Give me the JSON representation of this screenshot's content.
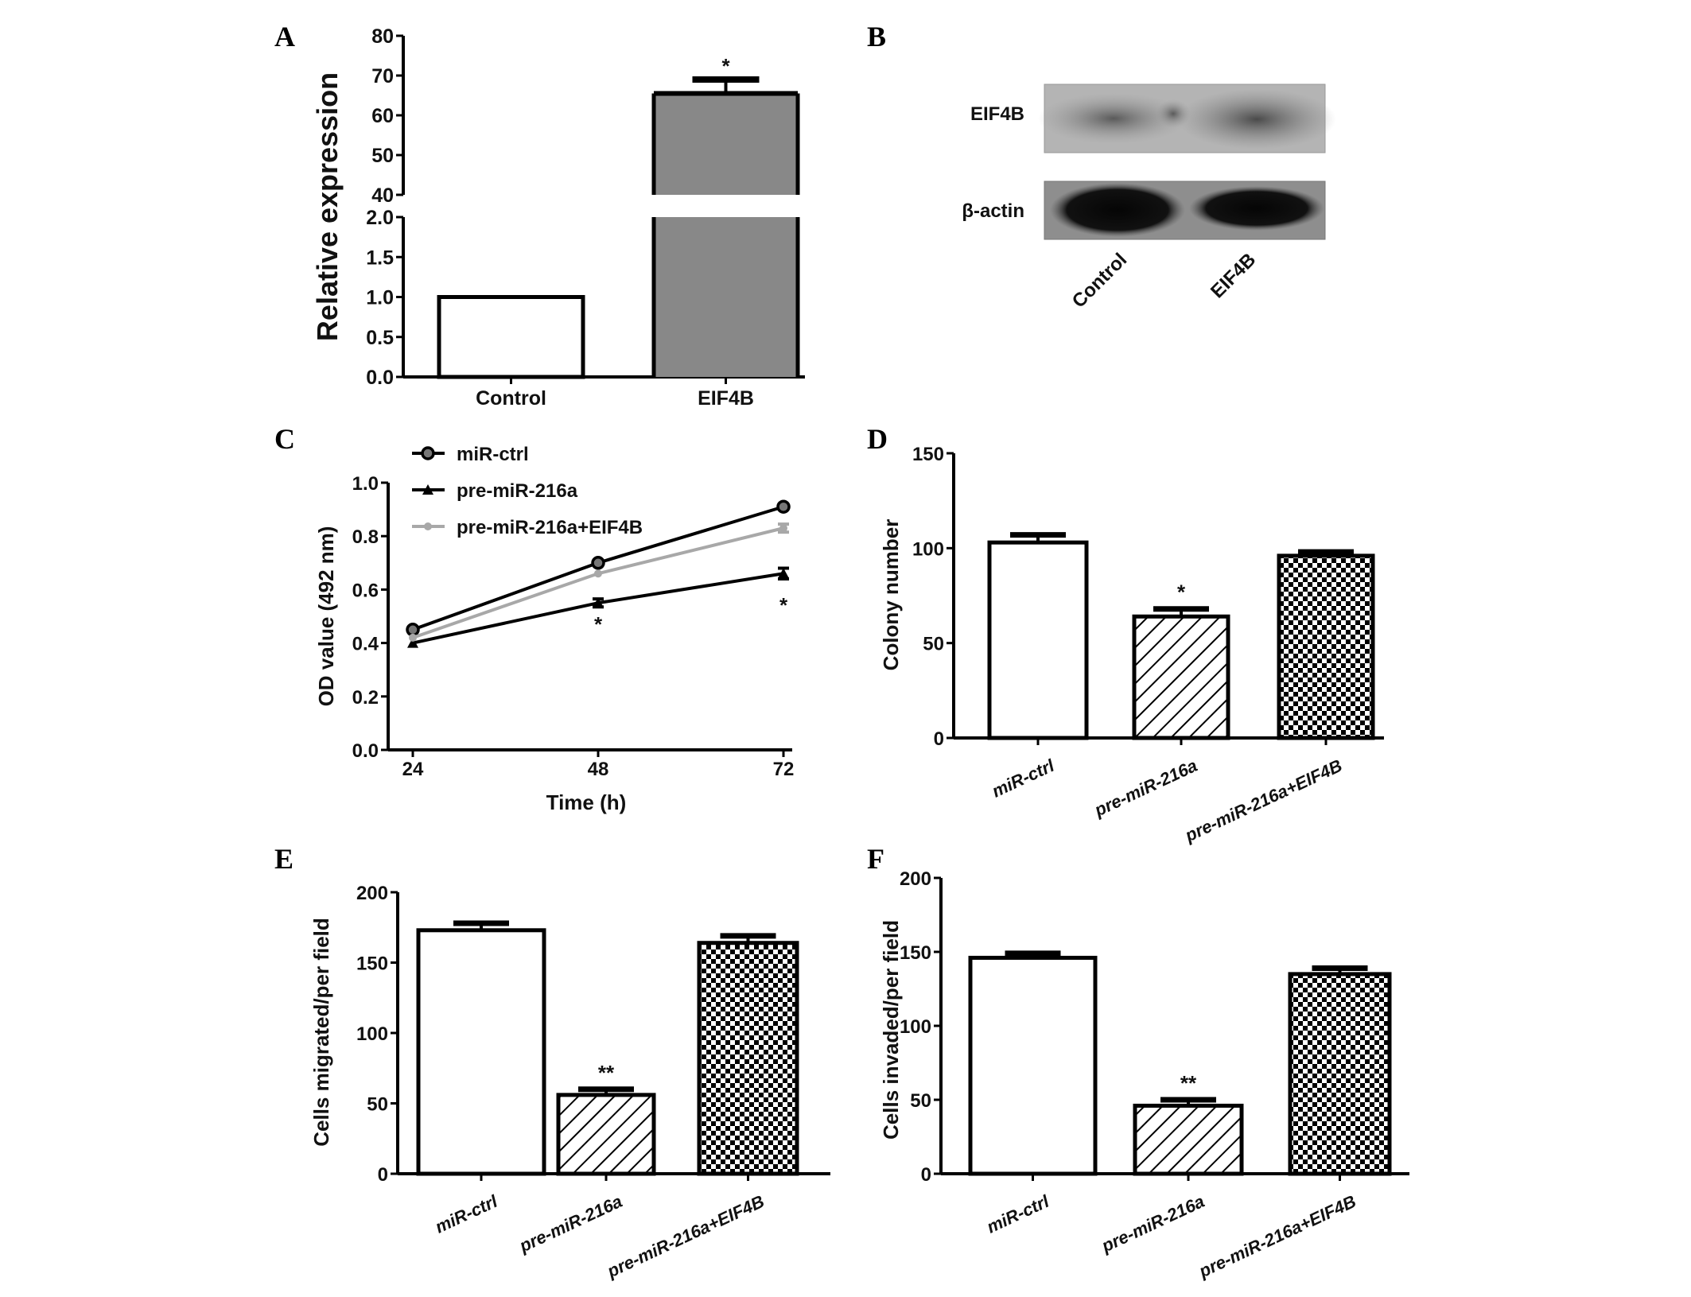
{
  "panels": {
    "A": "A",
    "B": "B",
    "C": "C",
    "D": "D",
    "E": "E",
    "F": "F"
  },
  "chart_data": [
    {
      "panel": "A",
      "type": "bar",
      "categories": [
        "Control",
        "EIF4B"
      ],
      "values": [
        1.0,
        65.5
      ],
      "errors": [
        0,
        3.5
      ],
      "annotations": [
        "",
        "*"
      ],
      "ylabel": "Relative expression",
      "y_axis_break": [
        2.0,
        40
      ],
      "yticks_lower": [
        "0.0",
        "0.5",
        "1.0",
        "1.5",
        "2.0"
      ],
      "yticks_upper": [
        "40",
        "50",
        "60",
        "70",
        "80"
      ],
      "fills": [
        "white",
        "#888888"
      ]
    },
    {
      "panel": "B",
      "type": "western-blot",
      "rows": [
        "EIF4B",
        "β-actin"
      ],
      "lanes": [
        "Control",
        "EIF4B"
      ]
    },
    {
      "panel": "C",
      "type": "line",
      "x": [
        24,
        48,
        72
      ],
      "xticks": [
        "24",
        "48",
        "72"
      ],
      "yticks": [
        "0.0",
        "0.2",
        "0.4",
        "0.6",
        "0.8",
        "1.0"
      ],
      "ylim": [
        0,
        1.0
      ],
      "xlabel": "Time (h)",
      "ylabel": "OD value (492 nm)",
      "legend": "top-left",
      "series": [
        {
          "name": "miR-ctrl",
          "values": [
            0.45,
            0.7,
            0.91
          ],
          "errors": [
            0.01,
            0.01,
            0.01
          ],
          "color": "#000000",
          "marker": "circle"
        },
        {
          "name": "pre-miR-216a",
          "values": [
            0.4,
            0.55,
            0.66
          ],
          "errors": [
            0.005,
            0.015,
            0.02
          ],
          "color": "#000000",
          "marker": "triangle"
        },
        {
          "name": "pre-miR-216a+EIF4B",
          "values": [
            0.42,
            0.66,
            0.83
          ],
          "errors": [
            0.005,
            0.008,
            0.015
          ],
          "color": "#a8a8a8",
          "marker": "circle"
        }
      ],
      "annotations": [
        {
          "x": 48,
          "text": "*"
        },
        {
          "x": 72,
          "text": "*"
        }
      ]
    },
    {
      "panel": "D",
      "type": "bar",
      "categories": [
        "miR-ctrl",
        "pre-miR-216a",
        "pre-miR-216a+EIF4B"
      ],
      "values": [
        103,
        64,
        96
      ],
      "errors": [
        4,
        4,
        2
      ],
      "annotations": [
        "",
        "*",
        ""
      ],
      "ylabel": "Colony number",
      "ylim": [
        0,
        150
      ],
      "yticks": [
        "0",
        "50",
        "100",
        "150"
      ],
      "fills": [
        "white",
        "hatch",
        "checker"
      ]
    },
    {
      "panel": "E",
      "type": "bar",
      "categories": [
        "miR-ctrl",
        "pre-miR-216a",
        "pre-miR-216a+EIF4B"
      ],
      "values": [
        173,
        56,
        164
      ],
      "errors": [
        5,
        4,
        5
      ],
      "annotations": [
        "",
        "**",
        ""
      ],
      "ylabel": "Cells migrated/per field",
      "ylim": [
        0,
        200
      ],
      "yticks": [
        "0",
        "50",
        "100",
        "150",
        "200"
      ],
      "fills": [
        "white",
        "hatch",
        "checker"
      ]
    },
    {
      "panel": "F",
      "type": "bar",
      "categories": [
        "miR-ctrl",
        "pre-miR-216a",
        "pre-miR-216a+EIF4B"
      ],
      "values": [
        146,
        46,
        135
      ],
      "errors": [
        3,
        4,
        4
      ],
      "annotations": [
        "",
        "**",
        ""
      ],
      "ylabel": "Cells invaded/per field",
      "ylim": [
        0,
        200
      ],
      "yticks": [
        "0",
        "50",
        "100",
        "150",
        "200"
      ],
      "fills": [
        "white",
        "hatch",
        "checker"
      ]
    }
  ]
}
